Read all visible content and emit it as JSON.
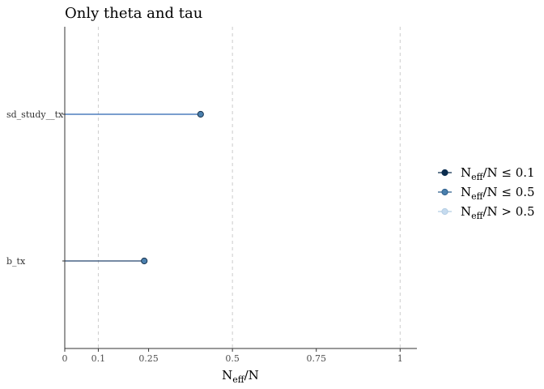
{
  "chart_data": {
    "type": "scatter",
    "title": "Only theta and tau",
    "xlabel": {
      "main": "N",
      "sub": "eff",
      "suffix": "/N"
    },
    "xlim": [
      0,
      1.05
    ],
    "x_ticks": [
      0,
      0.1,
      0.25,
      0.5,
      0.75,
      1
    ],
    "x_tick_labels": [
      "0",
      "0.1",
      "0.25",
      "0.5",
      "0.75",
      "1"
    ],
    "reference_lines": [
      0.1,
      0.5,
      1
    ],
    "grid": false,
    "categories": [
      "sd_study__tx",
      "b_tx"
    ],
    "values": [
      0.405,
      0.237
    ],
    "point_class": [
      "N_eff/N ≤ 0.5",
      "N_eff/N ≤ 0.5"
    ],
    "legend_position": "right",
    "legend": [
      {
        "main": "N",
        "sub": "eff",
        "suffix": "/N ≤ 0.1",
        "color": "#0b2c4e",
        "fill": "#0b2c4e"
      },
      {
        "main": "N",
        "sub": "eff",
        "suffix": "/N ≤ 0.5",
        "color": "#2e5f8c",
        "fill": "#4a7fad"
      },
      {
        "main": "N",
        "sub": "eff",
        "suffix": "/N > 0.5",
        "color": "#b3cde3",
        "fill": "#c6dbef"
      }
    ],
    "colors": {
      "axis": "#333333",
      "reference": "#cccccc",
      "segment_sd": "#2a63b0",
      "segment_b": "#25456d",
      "point_fill": "#4a7fad",
      "point_stroke": "#1a3550"
    }
  }
}
